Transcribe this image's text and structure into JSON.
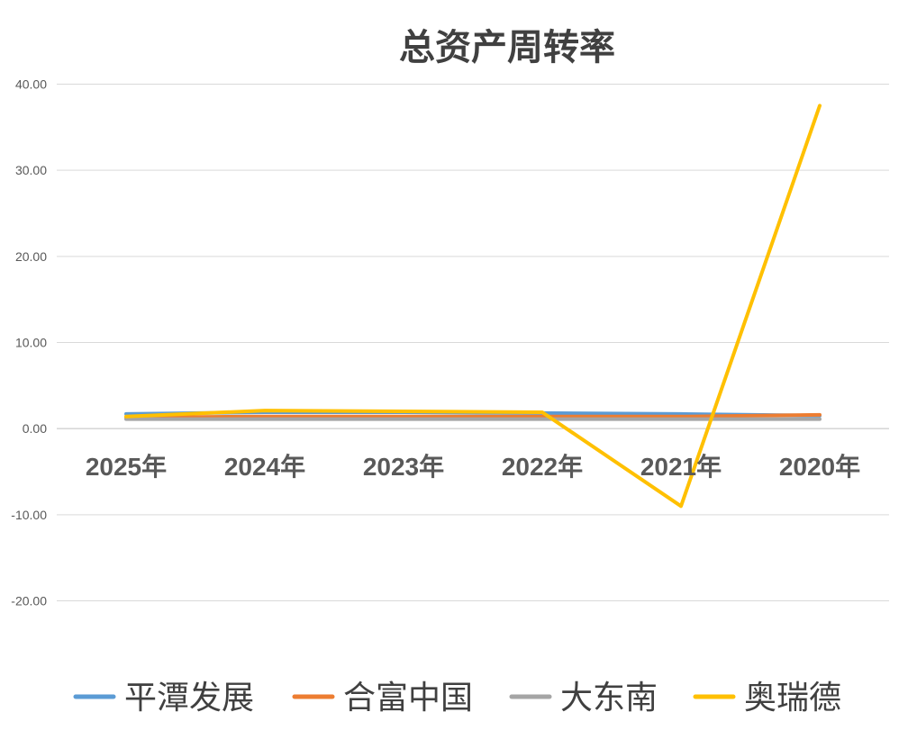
{
  "chart_data": {
    "type": "line",
    "title": "总资产周转率",
    "categories": [
      "2025年",
      "2024年",
      "2023年",
      "2022年",
      "2021年",
      "2020年"
    ],
    "ylim": [
      -20,
      40
    ],
    "yticks": [
      "40.00",
      "30.00",
      "20.00",
      "10.00",
      "0.00",
      "-10.00",
      "-20.00"
    ],
    "grid": true,
    "legend_position": "bottom",
    "series": [
      {
        "name": "平潭发展",
        "color": "#5B9BD5",
        "values": [
          1.7,
          1.9,
          1.9,
          1.8,
          1.7,
          1.5
        ]
      },
      {
        "name": "合富中国",
        "color": "#ED7D31",
        "values": [
          1.3,
          1.4,
          1.4,
          1.4,
          1.4,
          1.6
        ]
      },
      {
        "name": "大东南",
        "color": "#A5A5A5",
        "values": [
          1.1,
          1.1,
          1.1,
          1.1,
          1.1,
          1.1
        ]
      },
      {
        "name": "奥瑞德",
        "color": "#FFC000",
        "values": [
          1.4,
          2.1,
          2.0,
          1.9,
          -9.0,
          37.5
        ]
      }
    ]
  }
}
